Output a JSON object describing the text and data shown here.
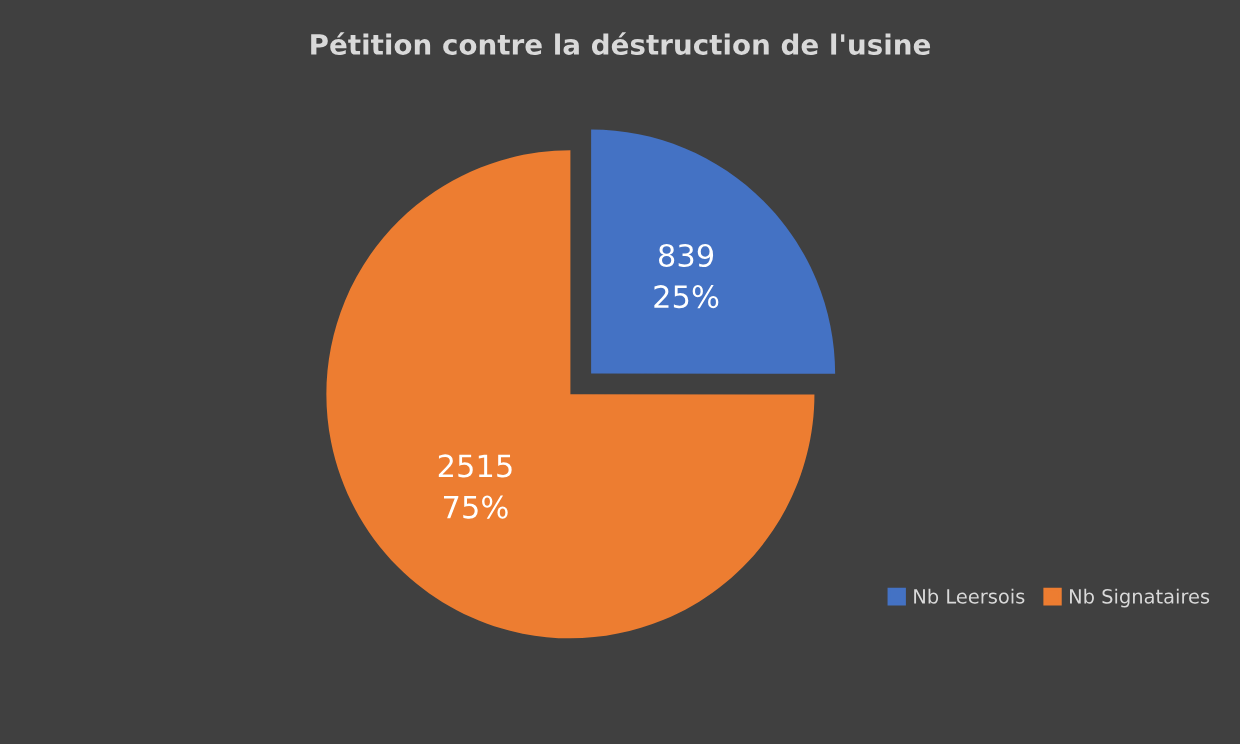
{
  "chart_data": {
    "type": "pie",
    "title": "Pétition contre la déstruction de l'usine",
    "categories": [
      "Nb Leersois",
      "Nb Signataires"
    ],
    "values": [
      839,
      2515
    ],
    "colors": [
      "#4472c4",
      "#ed7d31"
    ],
    "value_labels": [
      "839\n25%",
      "2515\n75%"
    ],
    "legend": "bottom right"
  }
}
